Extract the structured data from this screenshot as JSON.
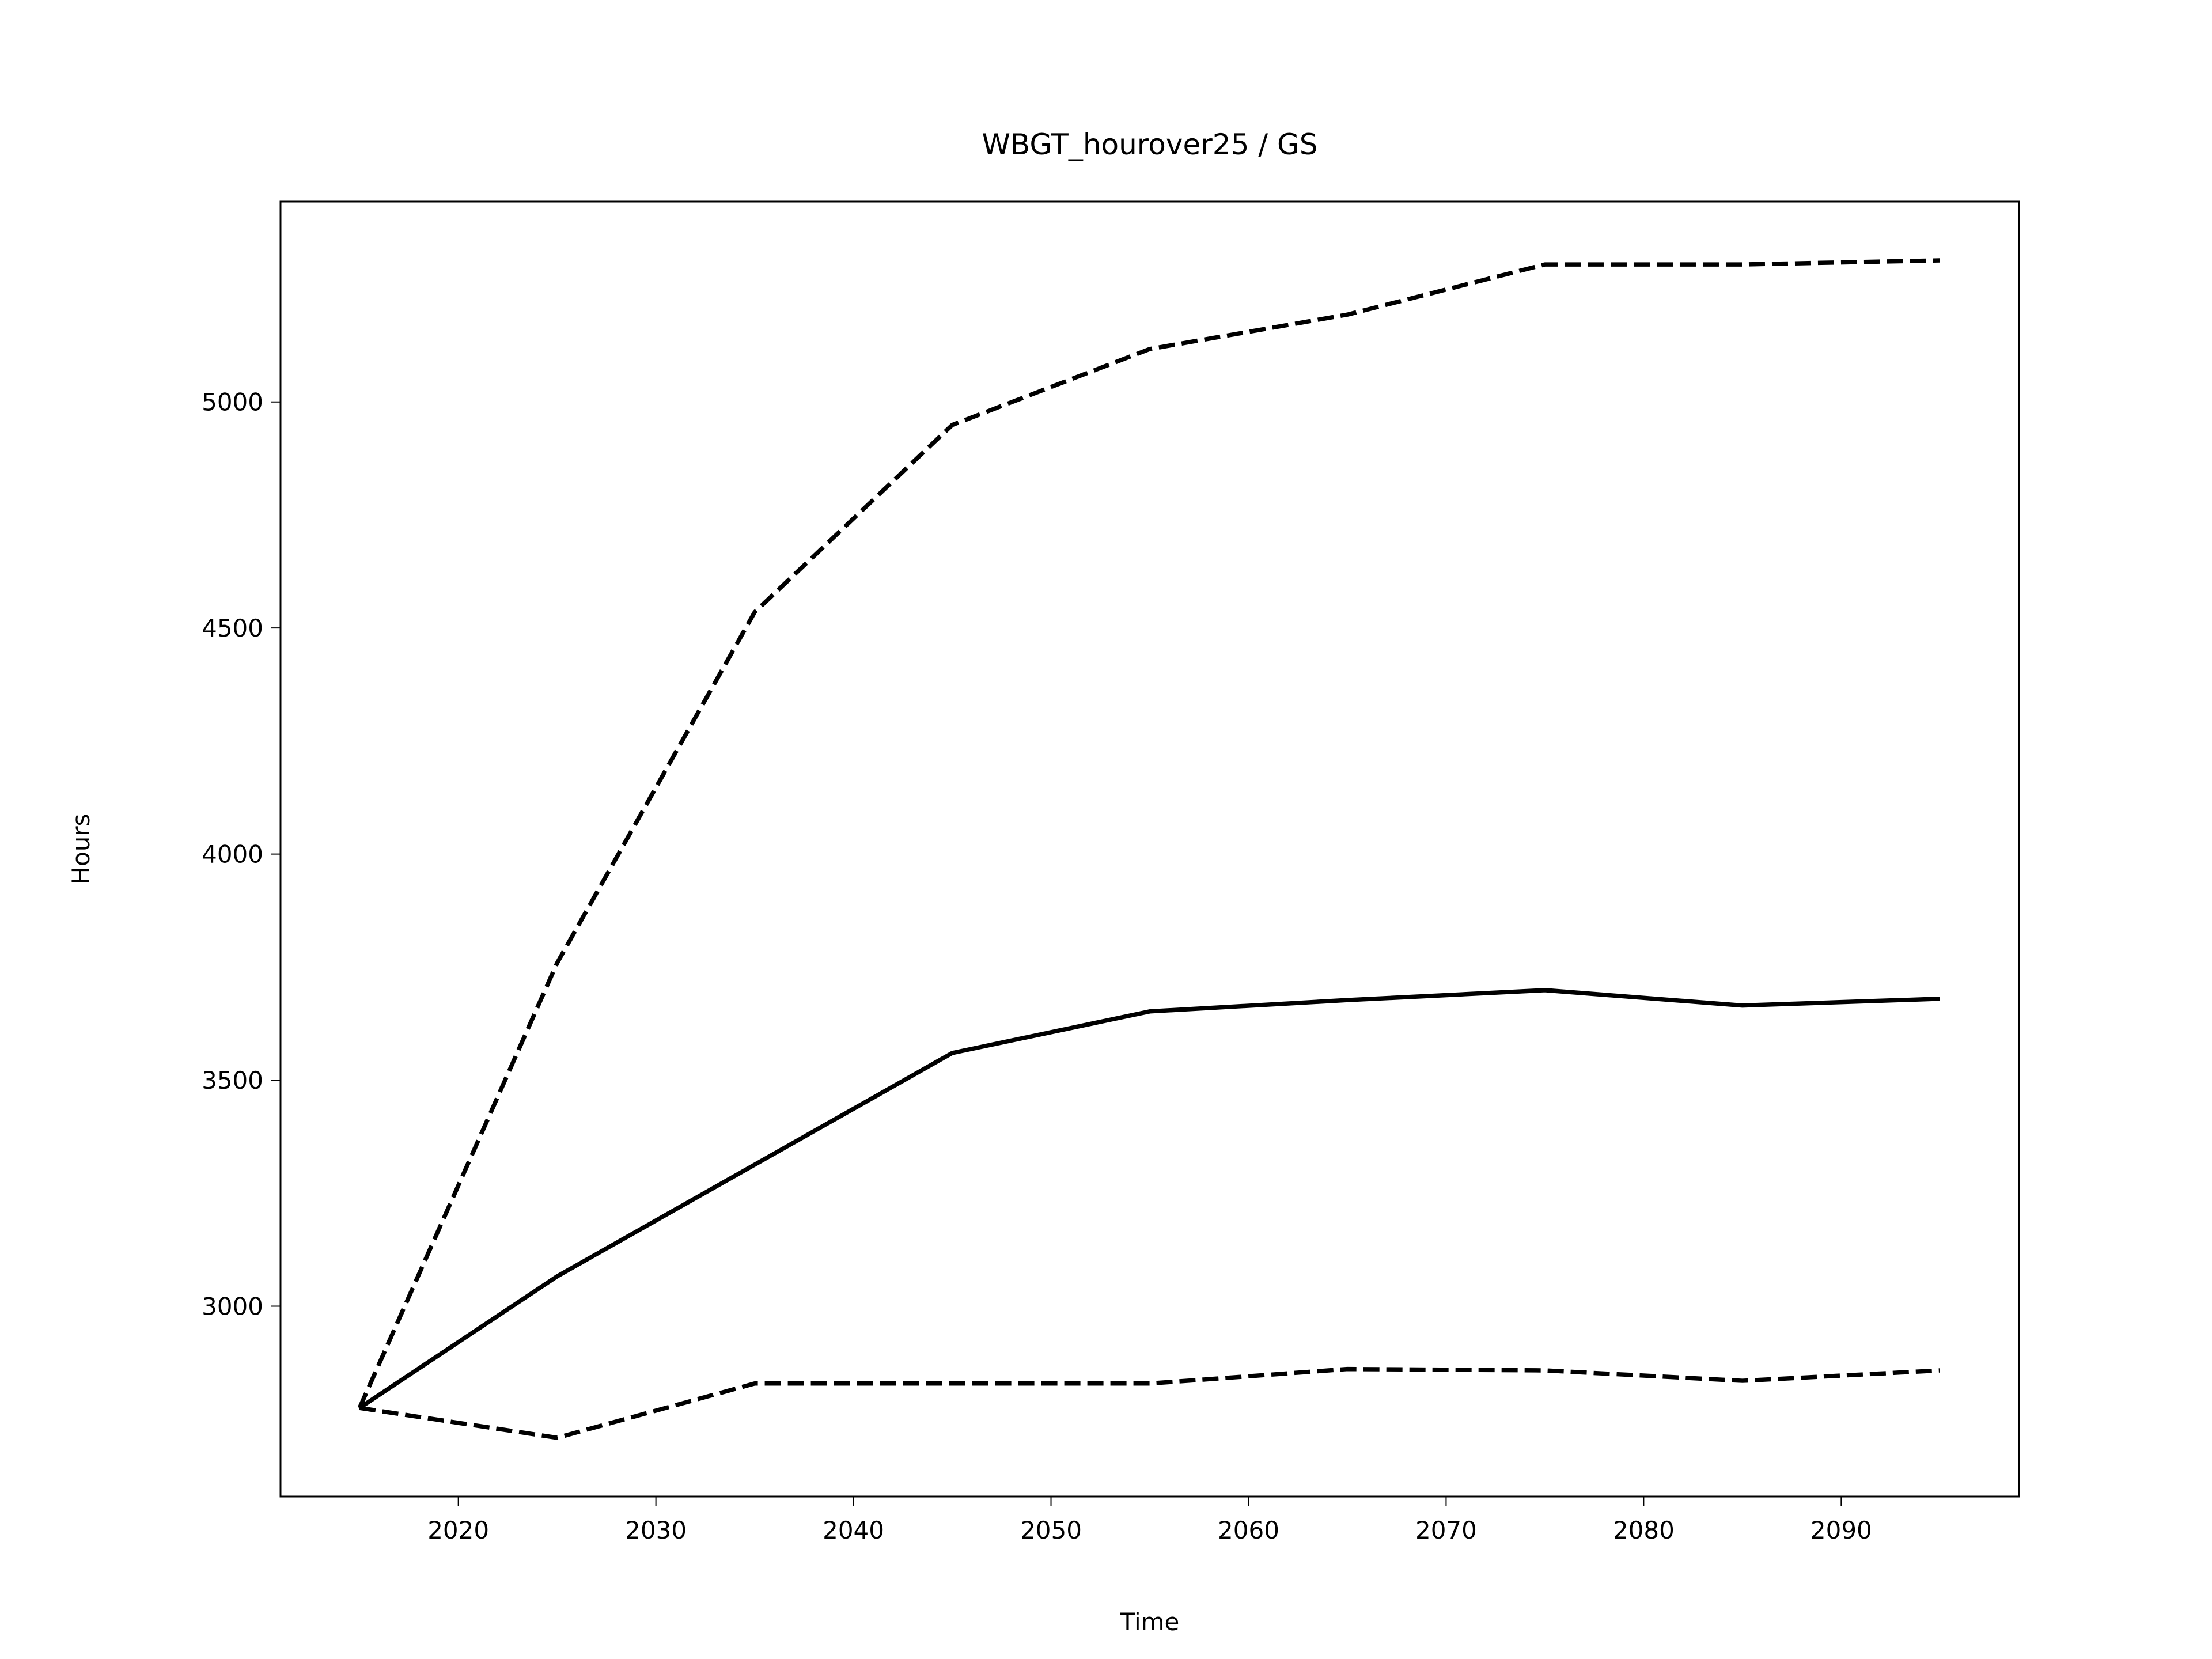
{
  "chart_data": {
    "type": "line",
    "title": "WBGT_hourover25 / GS",
    "xlabel": "Time",
    "ylabel": "Hours",
    "x": [
      2015,
      2025,
      2035,
      2045,
      2055,
      2065,
      2075,
      2085,
      2095
    ],
    "series": [
      {
        "color": "#000000",
        "linestyle": "solid",
        "values": [
          2775,
          3066,
          3313,
          3560,
          3652,
          3677,
          3699,
          3665,
          3680
        ]
      },
      {
        "color": "#000000",
        "linestyle": "dashed",
        "values": [
          2775,
          3759,
          4535,
          4949,
          5117,
          5193,
          5304,
          5304,
          5313
        ]
      },
      {
        "color": "#000000",
        "linestyle": "dashed",
        "values": [
          2775,
          2709,
          2829,
          2829,
          2829,
          2861,
          2858,
          2835,
          2858
        ]
      }
    ],
    "xlim": [
      2011,
      2099
    ],
    "xticks": [
      2020,
      2030,
      2040,
      2050,
      2060,
      2070,
      2080,
      2090
    ],
    "ylim": [
      2579,
      5443
    ],
    "yticks": [
      3000,
      3500,
      4000,
      4500,
      5000
    ],
    "grid": false
  }
}
